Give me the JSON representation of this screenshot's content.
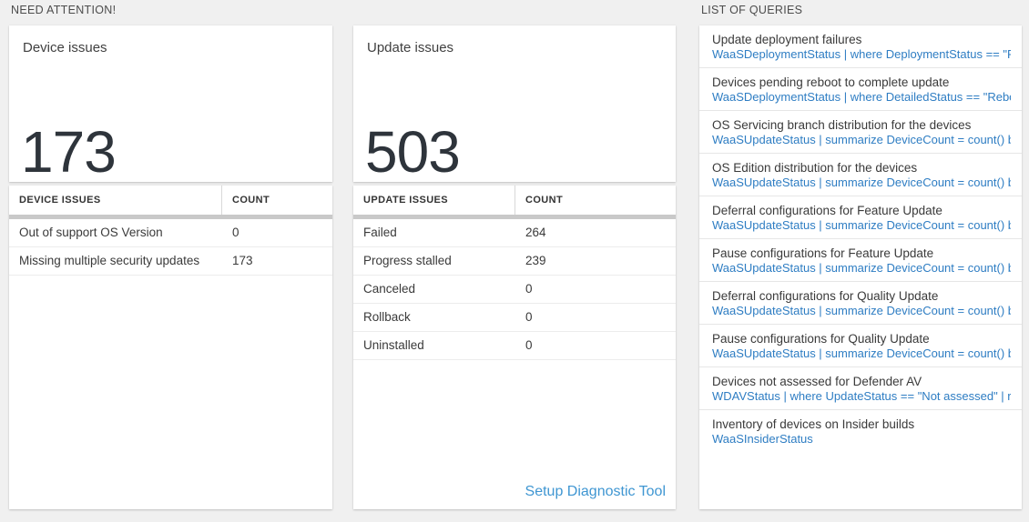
{
  "colors": {
    "background": "#f0f0f0",
    "query_link_blue": "#2e7dc3",
    "setup_link_blue": "#3f96d2",
    "table_bar_gray": "#c9c9c9"
  },
  "need_attention": {
    "label": "NEED ATTENTION!",
    "device_tile": {
      "title": "Device issues",
      "value": "173"
    },
    "device_table": {
      "columns": {
        "name": "DEVICE ISSUES",
        "count": "COUNT"
      },
      "rows": [
        {
          "label": "Out of support OS Version",
          "count": "0"
        },
        {
          "label": "Missing multiple security updates",
          "count": "173"
        }
      ]
    },
    "update_tile": {
      "title": "Update issues",
      "value": "503"
    },
    "update_table": {
      "columns": {
        "name": "UPDATE ISSUES",
        "count": "COUNT"
      },
      "rows": [
        {
          "label": "Failed",
          "count": "264"
        },
        {
          "label": "Progress stalled",
          "count": "239"
        },
        {
          "label": "Canceled",
          "count": "0"
        },
        {
          "label": "Rollback",
          "count": "0"
        },
        {
          "label": "Uninstalled",
          "count": "0"
        }
      ],
      "footer_link": "Setup Diagnostic Tool"
    }
  },
  "queries_panel": {
    "label": "LIST OF QUERIES",
    "items": [
      {
        "title": "Update deployment failures",
        "query": "WaaSDeploymentStatus | where DeploymentStatus == \"Failed\" |..."
      },
      {
        "title": "Devices pending reboot to complete update",
        "query": "WaaSDeploymentStatus | where DetailedStatus == \"Reboot pend..."
      },
      {
        "title": "OS Servicing branch distribution for the devices",
        "query": "WaaSUpdateStatus | summarize DeviceCount = count() by OSSer..."
      },
      {
        "title": "OS Edition distribution for the devices",
        "query": "WaaSUpdateStatus | summarize DeviceCount = count() by OSEdit..."
      },
      {
        "title": "Deferral configurations for Feature Update",
        "query": "WaaSUpdateStatus | summarize DeviceCount = count() by Featur..."
      },
      {
        "title": "Pause configurations for Feature Update",
        "query": "WaaSUpdateStatus | summarize DeviceCount = count() by Featur..."
      },
      {
        "title": "Deferral configurations for Quality Update",
        "query": "WaaSUpdateStatus | summarize DeviceCount = count() by Qualit..."
      },
      {
        "title": "Pause configurations for Quality Update",
        "query": "WaaSUpdateStatus | summarize DeviceCount = count() by Qualit..."
      },
      {
        "title": "Devices not assessed for Defender AV",
        "query": "WDAVStatus | where UpdateStatus == \"Not assessed\" | render ta..."
      },
      {
        "title": "Inventory of devices on Insider builds",
        "query": "WaaSInsiderStatus"
      }
    ]
  }
}
